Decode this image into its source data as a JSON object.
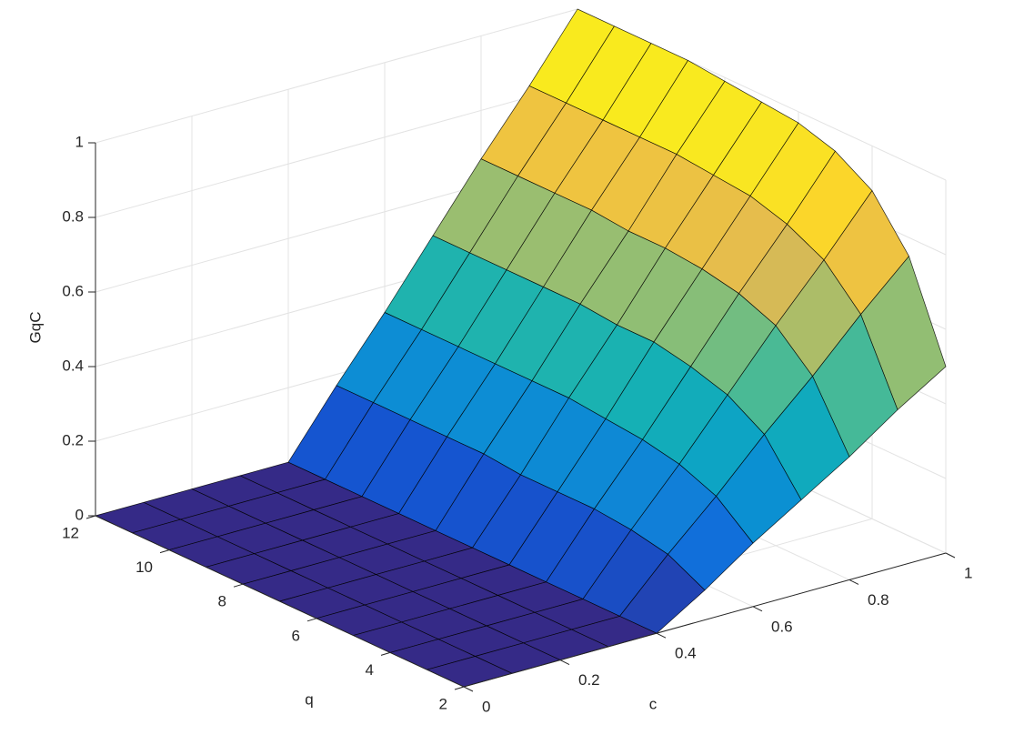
{
  "chart_data": {
    "type": "surface",
    "xlabel": "c",
    "ylabel": "q",
    "zlabel": "GqC",
    "x": [
      0,
      0.1,
      0.2,
      0.3,
      0.4,
      0.5,
      0.6,
      0.7,
      0.8,
      0.9,
      1
    ],
    "y": [
      2,
      3,
      4,
      5,
      6,
      7,
      8,
      9,
      10,
      11,
      12
    ],
    "z": [
      [
        0,
        0,
        0,
        0,
        0,
        0.08,
        0.17,
        0.25,
        0.33,
        0.42,
        0.5
      ],
      [
        0,
        0,
        0,
        0,
        0,
        0.13,
        0.25,
        0.38,
        0.5,
        0.63,
        0.75
      ],
      [
        0,
        0,
        0,
        0,
        0,
        0.15,
        0.29,
        0.44,
        0.59,
        0.73,
        0.88
      ],
      [
        0,
        0,
        0,
        0,
        0,
        0.16,
        0.31,
        0.47,
        0.63,
        0.78,
        0.94
      ],
      [
        0,
        0,
        0,
        0,
        0,
        0.16,
        0.32,
        0.49,
        0.65,
        0.81,
        0.97
      ],
      [
        0,
        0,
        0,
        0,
        0,
        0.16,
        0.33,
        0.49,
        0.66,
        0.82,
        0.98
      ],
      [
        0,
        0,
        0,
        0,
        0,
        0.17,
        0.33,
        0.5,
        0.66,
        0.83,
        0.99
      ],
      [
        0,
        0,
        0,
        0,
        0,
        0.17,
        0.33,
        0.5,
        0.67,
        0.83,
        1
      ],
      [
        0,
        0,
        0,
        0,
        0,
        0.17,
        0.33,
        0.5,
        0.67,
        0.83,
        1
      ],
      [
        0,
        0,
        0,
        0,
        0,
        0.17,
        0.33,
        0.5,
        0.67,
        0.83,
        1
      ],
      [
        0,
        0,
        0,
        0,
        0,
        0.17,
        0.33,
        0.5,
        0.67,
        0.83,
        1
      ]
    ],
    "xlim": [
      0,
      1
    ],
    "ylim": [
      2,
      12
    ],
    "zlim": [
      0,
      1
    ],
    "xticks": [
      0,
      0.2,
      0.4,
      0.6,
      0.8,
      1
    ],
    "yticks": [
      2,
      4,
      6,
      8,
      10,
      12
    ],
    "zticks": [
      0,
      0.2,
      0.4,
      0.6,
      0.8,
      1
    ],
    "grid": true,
    "colormap": "parula",
    "edgecolor": "#000000"
  }
}
